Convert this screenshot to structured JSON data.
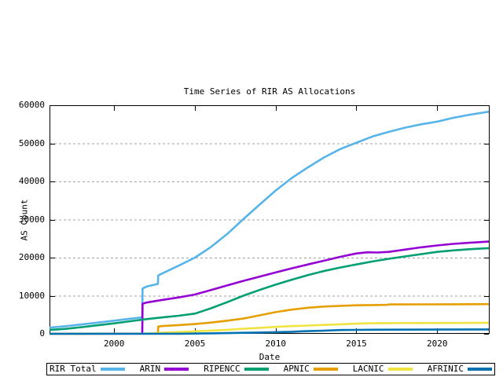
{
  "title": "Time Series of RIR AS Allocations",
  "axes": {
    "xlabel": "Date",
    "ylabel": "AS Count",
    "x_ticks": [
      2000,
      2005,
      2010,
      2015,
      2020
    ],
    "y_ticks": [
      0,
      10000,
      20000,
      30000,
      40000,
      50000,
      60000
    ],
    "x_range": [
      1996.0,
      2023.25
    ],
    "y_range": [
      0,
      60000
    ],
    "grid": "horizontal-dashed",
    "grid_color": "#a0a0a0",
    "border_color": "#000000"
  },
  "legend_position": "bottom-outside-boxed",
  "chart_data": {
    "type": "line",
    "title": "Time Series of RIR AS Allocations",
    "xlabel": "Date",
    "ylabel": "AS Count",
    "xlim": [
      1996.0,
      2023.25
    ],
    "ylim": [
      0,
      60000
    ],
    "series": [
      {
        "name": "RIR Total",
        "color": "#56b4e9",
        "points": [
          [
            1996,
            1600
          ],
          [
            1997,
            2000
          ],
          [
            1998,
            2450
          ],
          [
            1999,
            2950
          ],
          [
            2000,
            3450
          ],
          [
            2001,
            3950
          ],
          [
            2001.74,
            4300
          ],
          [
            2001.76,
            11900
          ],
          [
            2002,
            12400
          ],
          [
            2002.71,
            13100
          ],
          [
            2002.73,
            15300
          ],
          [
            2003,
            15900
          ],
          [
            2004,
            17900
          ],
          [
            2005,
            20000
          ],
          [
            2006,
            22800
          ],
          [
            2007,
            26200
          ],
          [
            2008,
            30100
          ],
          [
            2009,
            33900
          ],
          [
            2010,
            37600
          ],
          [
            2011,
            40900
          ],
          [
            2012,
            43700
          ],
          [
            2013,
            46300
          ],
          [
            2014,
            48500
          ],
          [
            2014.9,
            50000
          ],
          [
            2016,
            51800
          ],
          [
            2017,
            53000
          ],
          [
            2018,
            54100
          ],
          [
            2019,
            55000
          ],
          [
            2020,
            55700
          ],
          [
            2021,
            56700
          ],
          [
            2022,
            57500
          ],
          [
            2023.2,
            58300
          ]
        ]
      },
      {
        "name": "ARIN",
        "color": "#9400d3",
        "points": [
          [
            1996,
            30
          ],
          [
            2001.74,
            60
          ],
          [
            2001.76,
            7900
          ],
          [
            2002,
            8200
          ],
          [
            2003,
            8900
          ],
          [
            2004,
            9550
          ],
          [
            2005,
            10300
          ],
          [
            2006,
            11500
          ],
          [
            2007,
            12700
          ],
          [
            2008,
            13900
          ],
          [
            2009,
            15000
          ],
          [
            2010,
            16100
          ],
          [
            2011,
            17200
          ],
          [
            2012,
            18200
          ],
          [
            2013,
            19200
          ],
          [
            2014,
            20200
          ],
          [
            2015,
            21100
          ],
          [
            2015.7,
            21400
          ],
          [
            2016.3,
            21350
          ],
          [
            2017,
            21500
          ],
          [
            2018,
            22100
          ],
          [
            2019,
            22700
          ],
          [
            2020,
            23200
          ],
          [
            2021,
            23600
          ],
          [
            2022,
            23900
          ],
          [
            2023.2,
            24200
          ]
        ]
      },
      {
        "name": "RIPENCC",
        "color": "#009e73",
        "points": [
          [
            1996,
            1000
          ],
          [
            1997,
            1300
          ],
          [
            1998,
            1750
          ],
          [
            1999,
            2250
          ],
          [
            2000,
            2750
          ],
          [
            2001,
            3300
          ],
          [
            2002,
            3850
          ],
          [
            2003,
            4300
          ],
          [
            2004,
            4750
          ],
          [
            2005,
            5300
          ],
          [
            2006,
            6700
          ],
          [
            2007,
            8300
          ],
          [
            2008,
            10000
          ],
          [
            2009,
            11500
          ],
          [
            2010,
            12900
          ],
          [
            2011,
            14200
          ],
          [
            2012,
            15400
          ],
          [
            2013,
            16500
          ],
          [
            2014,
            17400
          ],
          [
            2015,
            18200
          ],
          [
            2016,
            19000
          ],
          [
            2017,
            19700
          ],
          [
            2018,
            20300
          ],
          [
            2019,
            20900
          ],
          [
            2020,
            21500
          ],
          [
            2021,
            21900
          ],
          [
            2022,
            22200
          ],
          [
            2023.2,
            22500
          ]
        ]
      },
      {
        "name": "APNIC",
        "color": "#e69f00",
        "points": [
          [
            2002.71,
            50
          ],
          [
            2002.73,
            1900
          ],
          [
            2003,
            2050
          ],
          [
            2004,
            2280
          ],
          [
            2005,
            2550
          ],
          [
            2006,
            2950
          ],
          [
            2007,
            3450
          ],
          [
            2008,
            4000
          ],
          [
            2009,
            4850
          ],
          [
            2010,
            5700
          ],
          [
            2011,
            6350
          ],
          [
            2012,
            6850
          ],
          [
            2013,
            7150
          ],
          [
            2014,
            7350
          ],
          [
            2015,
            7480
          ],
          [
            2016,
            7550
          ],
          [
            2016.9,
            7600
          ],
          [
            2017.1,
            7720
          ],
          [
            2019,
            7730
          ],
          [
            2021,
            7760
          ],
          [
            2023.2,
            7800
          ]
        ]
      },
      {
        "name": "LACNIC",
        "color": "#f0e442",
        "points": [
          [
            1996,
            10
          ],
          [
            2002,
            60
          ],
          [
            2002.5,
            150
          ],
          [
            2003,
            280
          ],
          [
            2004,
            460
          ],
          [
            2005,
            650
          ],
          [
            2006,
            850
          ],
          [
            2007,
            1060
          ],
          [
            2008,
            1310
          ],
          [
            2009,
            1560
          ],
          [
            2010,
            1810
          ],
          [
            2011,
            2020
          ],
          [
            2012,
            2170
          ],
          [
            2013,
            2330
          ],
          [
            2014,
            2500
          ],
          [
            2015,
            2660
          ],
          [
            2016,
            2760
          ],
          [
            2017,
            2800
          ],
          [
            2019,
            2820
          ],
          [
            2021,
            2840
          ],
          [
            2023.2,
            2860
          ]
        ]
      },
      {
        "name": "AFRINIC",
        "color": "#0072b2",
        "points": [
          [
            1996,
            5
          ],
          [
            2004,
            20
          ],
          [
            2005,
            70
          ],
          [
            2006,
            130
          ],
          [
            2007,
            190
          ],
          [
            2008,
            260
          ],
          [
            2009,
            340
          ],
          [
            2010,
            430
          ],
          [
            2011,
            530
          ],
          [
            2011.5,
            640
          ],
          [
            2012,
            700
          ],
          [
            2013,
            820
          ],
          [
            2014,
            980
          ],
          [
            2015,
            1040
          ],
          [
            2016,
            1080
          ],
          [
            2018,
            1100
          ],
          [
            2020,
            1120
          ],
          [
            2023.2,
            1150
          ]
        ]
      }
    ]
  }
}
